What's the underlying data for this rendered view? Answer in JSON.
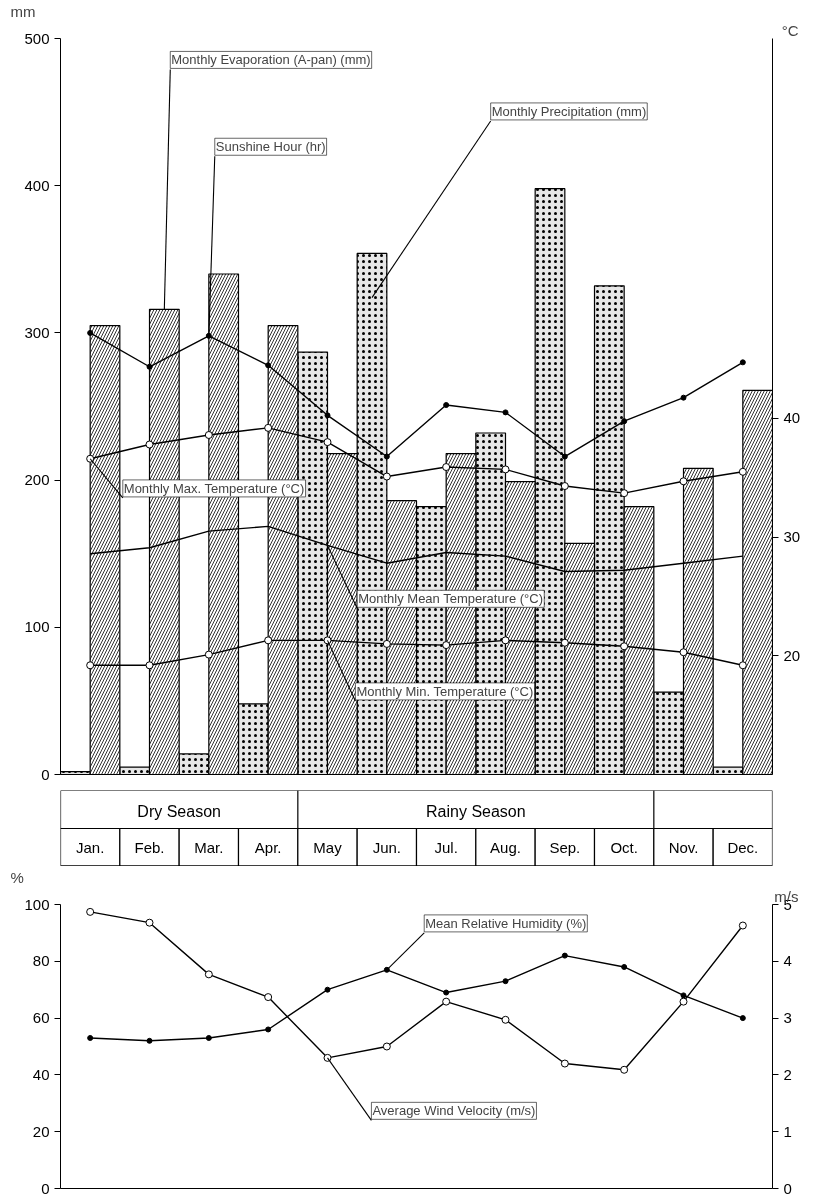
{
  "chart_data": [
    {
      "type": "bar",
      "categories": [
        "Jan.",
        "Feb.",
        "Mar.",
        "Apr.",
        "May",
        "Jun.",
        "Jul.",
        "Aug.",
        "Sep.",
        "Oct.",
        "Nov.",
        "Dec."
      ],
      "ylabel": "mm",
      "ylim": [
        0,
        500
      ],
      "yticks": [
        0,
        100,
        200,
        300,
        400,
        500
      ],
      "y2label": "°C",
      "y2lim": [
        10,
        72
      ],
      "y2ticks": [
        20,
        30,
        40
      ],
      "grid": false,
      "legend": false,
      "annotations": [
        "Dry Season",
        "Rainy Season"
      ],
      "series": [
        {
          "name": "Monthly Precipitation (mm)",
          "type": "bar",
          "color": "#e6e6e6",
          "values": [
            2,
            5,
            14,
            48,
            287,
            354,
            182,
            232,
            398,
            332,
            56,
            5
          ]
        },
        {
          "name": "Monthly Evaporation (A-pan) (mm)",
          "type": "bar",
          "color": "#ffffff",
          "values": [
            305,
            316,
            340,
            305,
            218,
            186,
            218,
            199,
            157,
            182,
            208,
            261
          ]
        },
        {
          "name": "Sunshine Hour (hr)",
          "type": "line",
          "color": "#000000",
          "marker": "circle",
          "values": [
            300,
            277,
            298,
            278,
            244,
            216,
            251,
            246,
            216,
            240,
            256,
            280
          ]
        },
        {
          "name": "Monthly Max. Temperature (°C)",
          "type": "line",
          "axis": "y2",
          "color": "#000000",
          "marker": "circle",
          "values": [
            36.6,
            37.8,
            38.6,
            39.2,
            38.0,
            35.1,
            35.9,
            35.7,
            34.3,
            33.7,
            34.7,
            35.5
          ]
        },
        {
          "name": "Monthly Mean Temperature (°C)",
          "type": "line",
          "axis": "y2",
          "color": "#000000",
          "marker": "none",
          "values": [
            28.6,
            29.1,
            30.5,
            30.9,
            29.3,
            27.8,
            28.7,
            28.4,
            27.1,
            27.2,
            27.8,
            28.4
          ]
        },
        {
          "name": "Monthly Min. Temperature (°C)",
          "type": "line",
          "axis": "y2",
          "color": "#000000",
          "marker": "circle",
          "values": [
            19.2,
            19.2,
            20.1,
            21.3,
            21.3,
            21.0,
            20.9,
            21.3,
            21.1,
            20.8,
            20.3,
            19.2
          ]
        }
      ]
    },
    {
      "type": "line",
      "categories": [
        null,
        null,
        null,
        null,
        null,
        null,
        null,
        null,
        null,
        null,
        null,
        null
      ],
      "tick_labels": "y",
      "ylabel": "%",
      "ylim": [
        0,
        100
      ],
      "yticks": [
        0,
        20,
        40,
        60,
        80,
        100
      ],
      "y2label": "m/s",
      "y2lim": [
        0,
        5
      ],
      "y2ticks": [
        0,
        1,
        2,
        3,
        4,
        5
      ],
      "grid": false,
      "legend": false,
      "series": [
        {
          "name": "Mean Relative Humidity (%)",
          "color": "#000000",
          "marker": "circle",
          "values": [
            53,
            52,
            53,
            56,
            70,
            77,
            69,
            73,
            82,
            78,
            68,
            60
          ]
        },
        {
          "name": "Average Wind Velocity (m/s)",
          "axis": "y2",
          "color": "#000000",
          "marker": "circle",
          "values": [
            4.87,
            4.68,
            3.77,
            3.37,
            2.3,
            2.5,
            3.29,
            2.97,
            2.2,
            2.09,
            3.29,
            4.63
          ]
        }
      ]
    }
  ]
}
